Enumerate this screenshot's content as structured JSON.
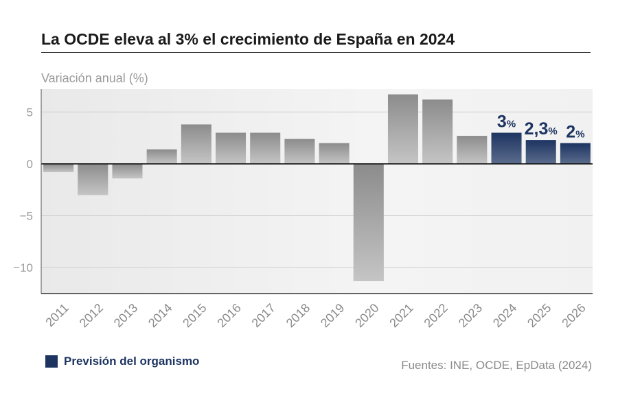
{
  "title": "La OCDE eleva al 3% el crecimiento de España en 2024",
  "source": "Fuentes: INE, OCDE, EpData (2024)",
  "legend": {
    "label": "Previsión del organismo",
    "color": "#1d3461"
  },
  "colors": {
    "actual": "#8c8c8c",
    "forecast": "#1d3461"
  },
  "chart_data": {
    "type": "bar",
    "title": "La OCDE eleva al 3% el crecimiento de España en 2024",
    "ylabel": "Variación anual (%)",
    "xlabel": "",
    "categories": [
      "2011",
      "2012",
      "2013",
      "2014",
      "2015",
      "2016",
      "2017",
      "2018",
      "2019",
      "2020",
      "2021",
      "2022",
      "2023",
      "2024",
      "2025",
      "2026"
    ],
    "values": [
      -0.8,
      -3.0,
      -1.4,
      1.4,
      3.8,
      3.0,
      3.0,
      2.4,
      2.0,
      -11.3,
      6.7,
      6.2,
      2.7,
      3.0,
      2.3,
      2.0
    ],
    "forecast": [
      false,
      false,
      false,
      false,
      false,
      false,
      false,
      false,
      false,
      false,
      false,
      false,
      false,
      true,
      true,
      true
    ],
    "data_labels": [
      {
        "category": "2024",
        "number": "3",
        "unit": "%"
      },
      {
        "category": "2025",
        "number": "2,3",
        "unit": "%"
      },
      {
        "category": "2026",
        "number": "2",
        "unit": "%"
      }
    ],
    "yticks": [
      5,
      0,
      -5,
      -10
    ],
    "ytick_labels": [
      "5",
      "0",
      "−5",
      "−10"
    ],
    "ylim": [
      -12.5,
      7.2
    ],
    "grid": true,
    "legend_position": "bottom-left"
  }
}
